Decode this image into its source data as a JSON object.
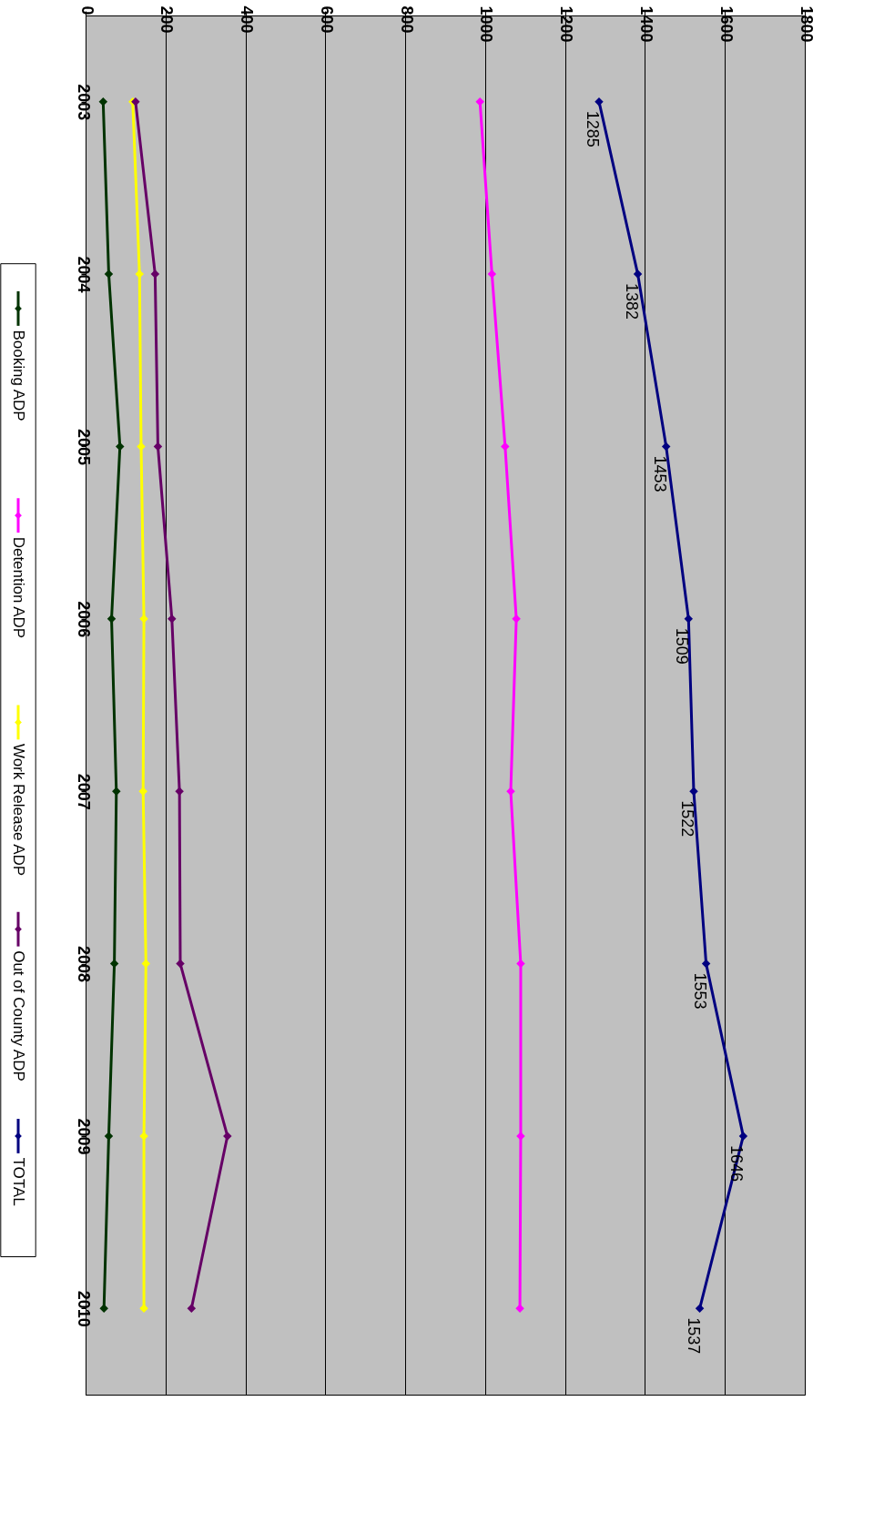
{
  "chart_data": {
    "type": "line",
    "orientation": "horizontal",
    "categories": [
      "2003",
      "2004",
      "2005",
      "2006",
      "2007",
      "2008",
      "2009",
      "2010"
    ],
    "series": [
      {
        "name": "Booking ADP",
        "color": "#003300",
        "values": [
          44,
          58,
          86,
          65,
          77,
          72,
          58,
          46
        ]
      },
      {
        "name": "Detention ADP",
        "color": "#ff00ff",
        "values": [
          987,
          1017,
          1050,
          1078,
          1064,
          1089,
          1089,
          1087
        ]
      },
      {
        "name": "Work Release ADP",
        "color": "#ffff00",
        "values": [
          118,
          135,
          139,
          146,
          144,
          151,
          146,
          146
        ]
      },
      {
        "name": "Out of County ADP",
        "color": "#660066",
        "values": [
          125,
          174,
          181,
          216,
          235,
          237,
          355,
          265
        ]
      },
      {
        "name": "TOTAL",
        "color": "#000080",
        "values": [
          1285,
          1382,
          1453,
          1509,
          1522,
          1553,
          1646,
          1537
        ],
        "value_labels": [
          "1285",
          "1382",
          "1453",
          "1509",
          "1522",
          "1553",
          "1646",
          "1537"
        ]
      }
    ],
    "xlim": [
      0,
      1800
    ],
    "xticks": [
      0,
      200,
      400,
      600,
      800,
      1000,
      1200,
      1400,
      1600,
      1800
    ],
    "grid": "x",
    "legend": "left",
    "marker": "diamond",
    "line_style": "solid"
  }
}
